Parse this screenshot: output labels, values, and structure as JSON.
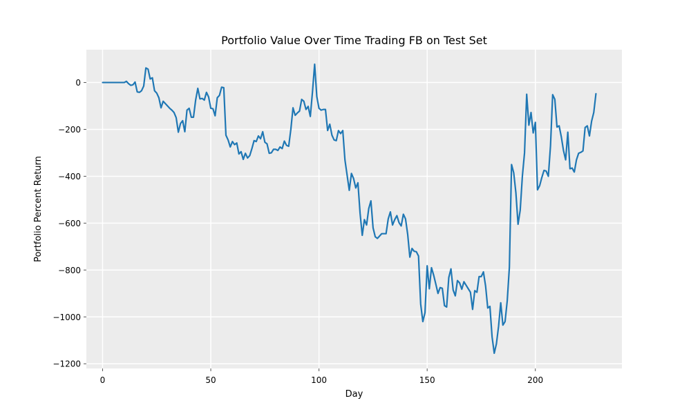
{
  "chart_data": {
    "type": "line",
    "title": "Portfolio Value Over Time Trading FB on Test Set",
    "xlabel": "Day",
    "ylabel": "Portfolio Percent Return",
    "xlim": [
      -7.5,
      240
    ],
    "ylim": [
      -1220,
      140
    ],
    "xticks": [
      0,
      50,
      100,
      150,
      200
    ],
    "yticks": [
      0,
      -200,
      -400,
      -600,
      -800,
      -1000,
      -1200
    ],
    "xtick_labels": [
      "0",
      "50",
      "100",
      "150",
      "200"
    ],
    "ytick_labels": [
      "0",
      "−200",
      "−400",
      "−600",
      "−800",
      "−1000",
      "−1200"
    ],
    "grid": true,
    "background": "#ececec",
    "series": [
      {
        "color": "#1f77b4",
        "points": [
          [
            0,
            0
          ],
          [
            1,
            0
          ],
          [
            2,
            0
          ],
          [
            3,
            0
          ],
          [
            4,
            0
          ],
          [
            5,
            0
          ],
          [
            6,
            0
          ],
          [
            7,
            0
          ],
          [
            8,
            0
          ],
          [
            9,
            0
          ],
          [
            10,
            0
          ],
          [
            11,
            5
          ],
          [
            12,
            -5
          ],
          [
            13,
            -12
          ],
          [
            14,
            -10
          ],
          [
            15,
            2
          ],
          [
            16,
            -40
          ],
          [
            17,
            -42
          ],
          [
            18,
            -35
          ],
          [
            19,
            -15
          ],
          [
            20,
            62
          ],
          [
            21,
            57
          ],
          [
            22,
            15
          ],
          [
            23,
            20
          ],
          [
            24,
            -35
          ],
          [
            25,
            -45
          ],
          [
            26,
            -65
          ],
          [
            27,
            -108
          ],
          [
            28,
            -80
          ],
          [
            29,
            -90
          ],
          [
            30,
            -100
          ],
          [
            31,
            -110
          ],
          [
            32,
            -118
          ],
          [
            33,
            -128
          ],
          [
            34,
            -150
          ],
          [
            35,
            -212
          ],
          [
            36,
            -175
          ],
          [
            37,
            -163
          ],
          [
            38,
            -210
          ],
          [
            39,
            -118
          ],
          [
            40,
            -110
          ],
          [
            41,
            -148
          ],
          [
            42,
            -148
          ],
          [
            43,
            -75
          ],
          [
            44,
            -25
          ],
          [
            45,
            -70
          ],
          [
            46,
            -68
          ],
          [
            47,
            -75
          ],
          [
            48,
            -42
          ],
          [
            49,
            -62
          ],
          [
            50,
            -110
          ],
          [
            51,
            -112
          ],
          [
            52,
            -142
          ],
          [
            53,
            -65
          ],
          [
            54,
            -55
          ],
          [
            55,
            -20
          ],
          [
            56,
            -22
          ],
          [
            57,
            -225
          ],
          [
            58,
            -245
          ],
          [
            59,
            -275
          ],
          [
            60,
            -252
          ],
          [
            61,
            -265
          ],
          [
            62,
            -258
          ],
          [
            63,
            -305
          ],
          [
            64,
            -295
          ],
          [
            65,
            -328
          ],
          [
            66,
            -302
          ],
          [
            67,
            -322
          ],
          [
            68,
            -312
          ],
          [
            69,
            -282
          ],
          [
            70,
            -248
          ],
          [
            71,
            -252
          ],
          [
            72,
            -228
          ],
          [
            73,
            -240
          ],
          [
            74,
            -210
          ],
          [
            75,
            -255
          ],
          [
            76,
            -262
          ],
          [
            77,
            -302
          ],
          [
            78,
            -300
          ],
          [
            79,
            -285
          ],
          [
            80,
            -285
          ],
          [
            81,
            -290
          ],
          [
            82,
            -275
          ],
          [
            83,
            -282
          ],
          [
            84,
            -250
          ],
          [
            85,
            -268
          ],
          [
            86,
            -272
          ],
          [
            87,
            -200
          ],
          [
            88,
            -108
          ],
          [
            89,
            -140
          ],
          [
            90,
            -130
          ],
          [
            91,
            -122
          ],
          [
            92,
            -72
          ],
          [
            93,
            -80
          ],
          [
            94,
            -115
          ],
          [
            95,
            -102
          ],
          [
            96,
            -145
          ],
          [
            97,
            -40
          ],
          [
            98,
            78
          ],
          [
            99,
            -60
          ],
          [
            100,
            -110
          ],
          [
            101,
            -118
          ],
          [
            102,
            -115
          ],
          [
            103,
            -115
          ],
          [
            104,
            -205
          ],
          [
            105,
            -178
          ],
          [
            106,
            -225
          ],
          [
            107,
            -245
          ],
          [
            108,
            -248
          ],
          [
            109,
            -205
          ],
          [
            110,
            -218
          ],
          [
            111,
            -205
          ],
          [
            112,
            -330
          ],
          [
            113,
            -395
          ],
          [
            114,
            -460
          ],
          [
            115,
            -388
          ],
          [
            116,
            -410
          ],
          [
            117,
            -450
          ],
          [
            118,
            -428
          ],
          [
            119,
            -558
          ],
          [
            120,
            -652
          ],
          [
            121,
            -585
          ],
          [
            122,
            -608
          ],
          [
            123,
            -538
          ],
          [
            124,
            -505
          ],
          [
            125,
            -620
          ],
          [
            126,
            -658
          ],
          [
            127,
            -665
          ],
          [
            128,
            -655
          ],
          [
            129,
            -645
          ],
          [
            130,
            -645
          ],
          [
            131,
            -645
          ],
          [
            132,
            -582
          ],
          [
            133,
            -552
          ],
          [
            134,
            -608
          ],
          [
            135,
            -585
          ],
          [
            136,
            -568
          ],
          [
            137,
            -598
          ],
          [
            138,
            -612
          ],
          [
            139,
            -562
          ],
          [
            140,
            -582
          ],
          [
            141,
            -648
          ],
          [
            142,
            -745
          ],
          [
            143,
            -708
          ],
          [
            144,
            -720
          ],
          [
            145,
            -722
          ],
          [
            146,
            -740
          ],
          [
            147,
            -945
          ],
          [
            148,
            -1020
          ],
          [
            149,
            -982
          ],
          [
            150,
            -782
          ],
          [
            151,
            -880
          ],
          [
            152,
            -790
          ],
          [
            153,
            -822
          ],
          [
            154,
            -860
          ],
          [
            155,
            -900
          ],
          [
            156,
            -875
          ],
          [
            157,
            -878
          ],
          [
            158,
            -952
          ],
          [
            159,
            -958
          ],
          [
            160,
            -832
          ],
          [
            161,
            -795
          ],
          [
            162,
            -885
          ],
          [
            163,
            -910
          ],
          [
            164,
            -845
          ],
          [
            165,
            -855
          ],
          [
            166,
            -882
          ],
          [
            167,
            -850
          ],
          [
            168,
            -865
          ],
          [
            169,
            -880
          ],
          [
            170,
            -895
          ],
          [
            171,
            -968
          ],
          [
            172,
            -888
          ],
          [
            173,
            -895
          ],
          [
            174,
            -828
          ],
          [
            175,
            -828
          ],
          [
            176,
            -808
          ],
          [
            177,
            -868
          ],
          [
            178,
            -962
          ],
          [
            179,
            -955
          ],
          [
            180,
            -1085
          ],
          [
            181,
            -1155
          ],
          [
            182,
            -1115
          ],
          [
            183,
            -1040
          ],
          [
            184,
            -940
          ],
          [
            185,
            -1035
          ],
          [
            186,
            -1020
          ],
          [
            187,
            -932
          ],
          [
            188,
            -788
          ],
          [
            189,
            -350
          ],
          [
            190,
            -385
          ],
          [
            191,
            -470
          ],
          [
            192,
            -605
          ],
          [
            193,
            -545
          ],
          [
            194,
            -400
          ],
          [
            195,
            -300
          ],
          [
            196,
            -50
          ],
          [
            197,
            -182
          ],
          [
            198,
            -128
          ],
          [
            199,
            -215
          ],
          [
            200,
            -170
          ],
          [
            201,
            -458
          ],
          [
            202,
            -440
          ],
          [
            203,
            -405
          ],
          [
            204,
            -375
          ],
          [
            205,
            -378
          ],
          [
            206,
            -400
          ],
          [
            207,
            -270
          ],
          [
            208,
            -52
          ],
          [
            209,
            -72
          ],
          [
            210,
            -190
          ],
          [
            211,
            -185
          ],
          [
            212,
            -232
          ],
          [
            213,
            -290
          ],
          [
            214,
            -330
          ],
          [
            215,
            -212
          ],
          [
            216,
            -368
          ],
          [
            217,
            -365
          ],
          [
            218,
            -382
          ],
          [
            219,
            -330
          ],
          [
            220,
            -302
          ],
          [
            221,
            -298
          ],
          [
            222,
            -292
          ],
          [
            223,
            -192
          ],
          [
            224,
            -185
          ],
          [
            225,
            -228
          ],
          [
            226,
            -165
          ],
          [
            227,
            -128
          ],
          [
            228,
            -48
          ]
        ]
      }
    ]
  }
}
